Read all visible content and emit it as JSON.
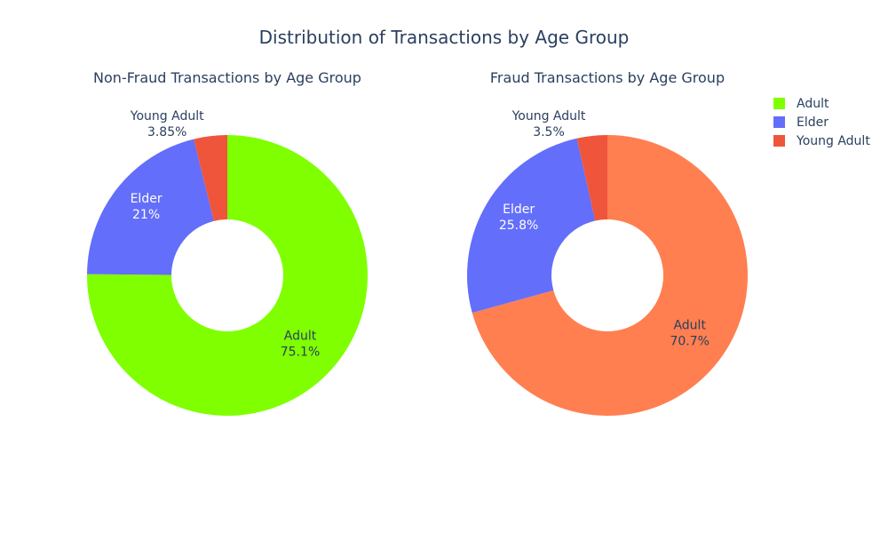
{
  "title": "Distribution of Transactions by Age Group",
  "legend": [
    {
      "label": "Adult",
      "color": "#7fff00"
    },
    {
      "label": "Elder",
      "color": "#636efa"
    },
    {
      "label": "Young Adult",
      "color": "#ef553b"
    }
  ],
  "chart_data": [
    {
      "type": "pie",
      "hole": true,
      "title": "Non-Fraud Transactions by Age Group",
      "categories": [
        "Adult",
        "Elder",
        "Young Adult"
      ],
      "values": [
        75.1,
        21,
        3.85
      ],
      "labels": [
        "75.1%",
        "21%",
        "3.85%"
      ],
      "colors": [
        "#7fff00",
        "#636efa",
        "#ef553b"
      ]
    },
    {
      "type": "pie",
      "hole": true,
      "title": "Fraud Transactions by Age Group",
      "categories": [
        "Adult",
        "Elder",
        "Young Adult"
      ],
      "values": [
        70.7,
        25.8,
        3.5
      ],
      "labels": [
        "70.7%",
        "25.8%",
        "3.5%"
      ],
      "colors": [
        "#ff7f50",
        "#636efa",
        "#ef553b"
      ]
    }
  ]
}
